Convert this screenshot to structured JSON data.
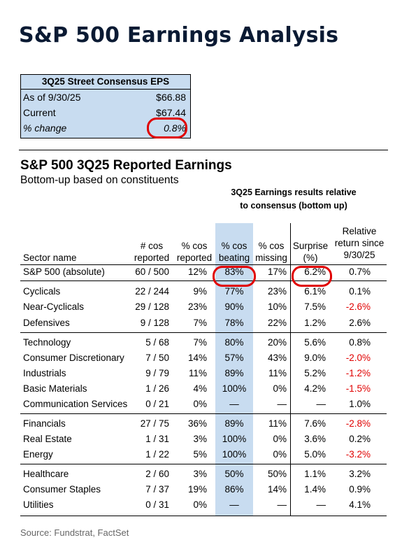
{
  "title": "S&P 500 Earnings Analysis",
  "consensus_box": {
    "header": "3Q25 Street Consensus EPS",
    "rows": [
      {
        "label": "As of 9/30/25",
        "value": "$66.88"
      },
      {
        "label": "Current",
        "value": "$67.44"
      },
      {
        "label": "% change",
        "value": "0.8%"
      }
    ]
  },
  "section": {
    "title": "S&P 500 3Q25 Reported Earnings",
    "subtitle": "Bottom-up based on constituents",
    "group_header_1": "3Q25 Earnings results relative",
    "group_header_2": "to consensus (bottom up)"
  },
  "table": {
    "headers": {
      "sector": "Sector name",
      "cos_reported": [
        "# cos",
        "reported"
      ],
      "pct_reported": [
        "% cos",
        "reported"
      ],
      "pct_beating": [
        "% cos",
        "beating"
      ],
      "pct_missing": [
        "% cos",
        "missing"
      ],
      "surprise": [
        "Surprise",
        "(%)"
      ],
      "relative": [
        "Relative",
        "return since",
        "9/30/25"
      ]
    },
    "rows": [
      {
        "sector": "S&P 500 (absolute)",
        "reported": "60 / 500",
        "pct_reported": "12%",
        "beating": "83%",
        "missing": "17%",
        "surprise": "6.2%",
        "relative": "0.7%",
        "neg": false
      },
      {
        "sector": "Cyclicals",
        "reported": "22 / 244",
        "pct_reported": "9%",
        "beating": "77%",
        "missing": "23%",
        "surprise": "6.1%",
        "relative": "0.1%",
        "neg": false
      },
      {
        "sector": "Near-Cyclicals",
        "reported": "29 / 128",
        "pct_reported": "23%",
        "beating": "90%",
        "missing": "10%",
        "surprise": "7.5%",
        "relative": "-2.6%",
        "neg": true
      },
      {
        "sector": "Defensives",
        "reported": "9 / 128",
        "pct_reported": "7%",
        "beating": "78%",
        "missing": "22%",
        "surprise": "1.2%",
        "relative": "2.6%",
        "neg": false
      },
      {
        "sector": "Technology",
        "reported": "5 / 68",
        "pct_reported": "7%",
        "beating": "80%",
        "missing": "20%",
        "surprise": "5.6%",
        "relative": "0.8%",
        "neg": false
      },
      {
        "sector": "Consumer Discretionary",
        "reported": "7 / 50",
        "pct_reported": "14%",
        "beating": "57%",
        "missing": "43%",
        "surprise": "9.0%",
        "relative": "-2.0%",
        "neg": true
      },
      {
        "sector": "Industrials",
        "reported": "9 / 79",
        "pct_reported": "11%",
        "beating": "89%",
        "missing": "11%",
        "surprise": "5.2%",
        "relative": "-1.2%",
        "neg": true
      },
      {
        "sector": "Basic Materials",
        "reported": "1 / 26",
        "pct_reported": "4%",
        "beating": "100%",
        "missing": "0%",
        "surprise": "4.2%",
        "relative": "-1.5%",
        "neg": true
      },
      {
        "sector": "Communication Services",
        "reported": "0 / 21",
        "pct_reported": "0%",
        "beating": "—",
        "missing": "—",
        "surprise": "—",
        "relative": "1.0%",
        "neg": false
      },
      {
        "sector": "Financials",
        "reported": "27 / 75",
        "pct_reported": "36%",
        "beating": "89%",
        "missing": "11%",
        "surprise": "7.6%",
        "relative": "-2.8%",
        "neg": true
      },
      {
        "sector": "Real Estate",
        "reported": "1 / 31",
        "pct_reported": "3%",
        "beating": "100%",
        "missing": "0%",
        "surprise": "3.6%",
        "relative": "0.2%",
        "neg": false
      },
      {
        "sector": "Energy",
        "reported": "1 / 22",
        "pct_reported": "5%",
        "beating": "100%",
        "missing": "0%",
        "surprise": "5.0%",
        "relative": "-3.2%",
        "neg": true
      },
      {
        "sector": "Healthcare",
        "reported": "2 / 60",
        "pct_reported": "3%",
        "beating": "50%",
        "missing": "50%",
        "surprise": "1.1%",
        "relative": "3.2%",
        "neg": false
      },
      {
        "sector": "Consumer Staples",
        "reported": "7 / 37",
        "pct_reported": "19%",
        "beating": "86%",
        "missing": "14%",
        "surprise": "1.4%",
        "relative": "0.9%",
        "neg": false
      },
      {
        "sector": "Utilities",
        "reported": "0 / 31",
        "pct_reported": "0%",
        "beating": "—",
        "missing": "—",
        "surprise": "—",
        "relative": "4.1%",
        "neg": false
      }
    ]
  },
  "source": "Source: Fundstrat, FactSet",
  "colors": {
    "highlight_blue": "#c8dcf0",
    "negative_red": "#e00000",
    "title_navy": "#0a1a33"
  }
}
